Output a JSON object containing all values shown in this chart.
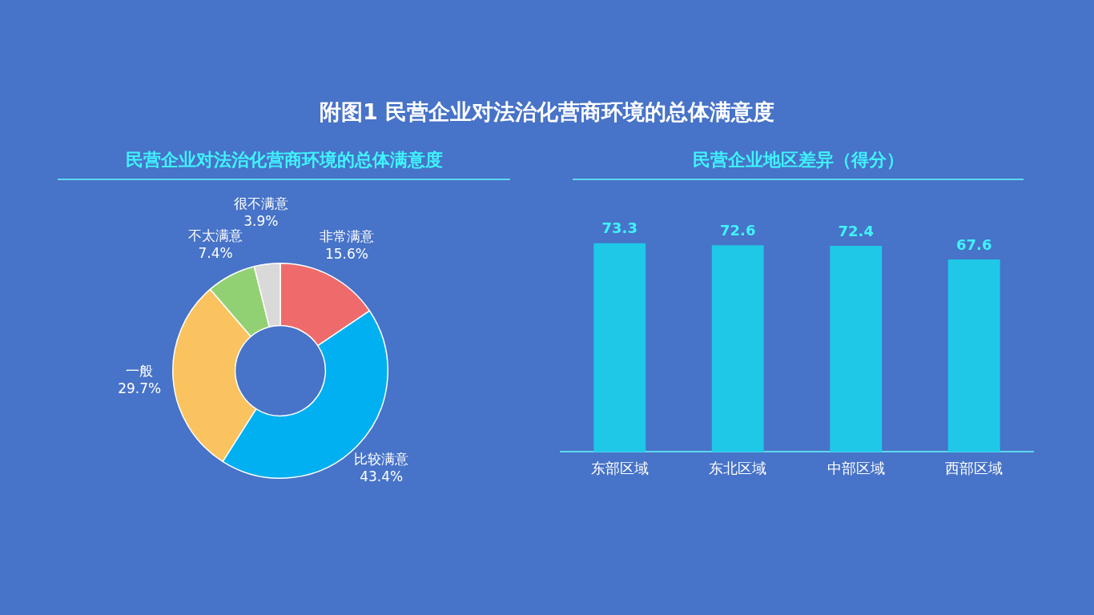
{
  "chart_data": [
    {
      "type": "donut",
      "title": "附图1  民营企业对法治化营商环境的总体满意度",
      "subtitle": "民营企业对法治化营商环境的总体满意度",
      "categories": [
        "非常满意",
        "比较满意",
        "一般",
        "不太满意",
        "很不满意"
      ],
      "values": [
        15.6,
        43.4,
        29.7,
        7.4,
        3.9
      ],
      "colors": [
        "#ef6b6b",
        "#00b0f0",
        "#fac35f",
        "#92d173",
        "#d9d9d9"
      ],
      "value_labels": [
        "15.6%",
        "43.4%",
        "29.7%",
        "7.4%",
        "3.9%"
      ]
    },
    {
      "type": "bar",
      "title": "民营企业地区差异（得分）",
      "categories": [
        "东部区域",
        "东北区域",
        "中部区域",
        "西部区域"
      ],
      "values": [
        73.3,
        72.6,
        72.4,
        67.6
      ],
      "color": "#1ec8e6",
      "data_labels": true,
      "tick_labels": "x"
    }
  ]
}
